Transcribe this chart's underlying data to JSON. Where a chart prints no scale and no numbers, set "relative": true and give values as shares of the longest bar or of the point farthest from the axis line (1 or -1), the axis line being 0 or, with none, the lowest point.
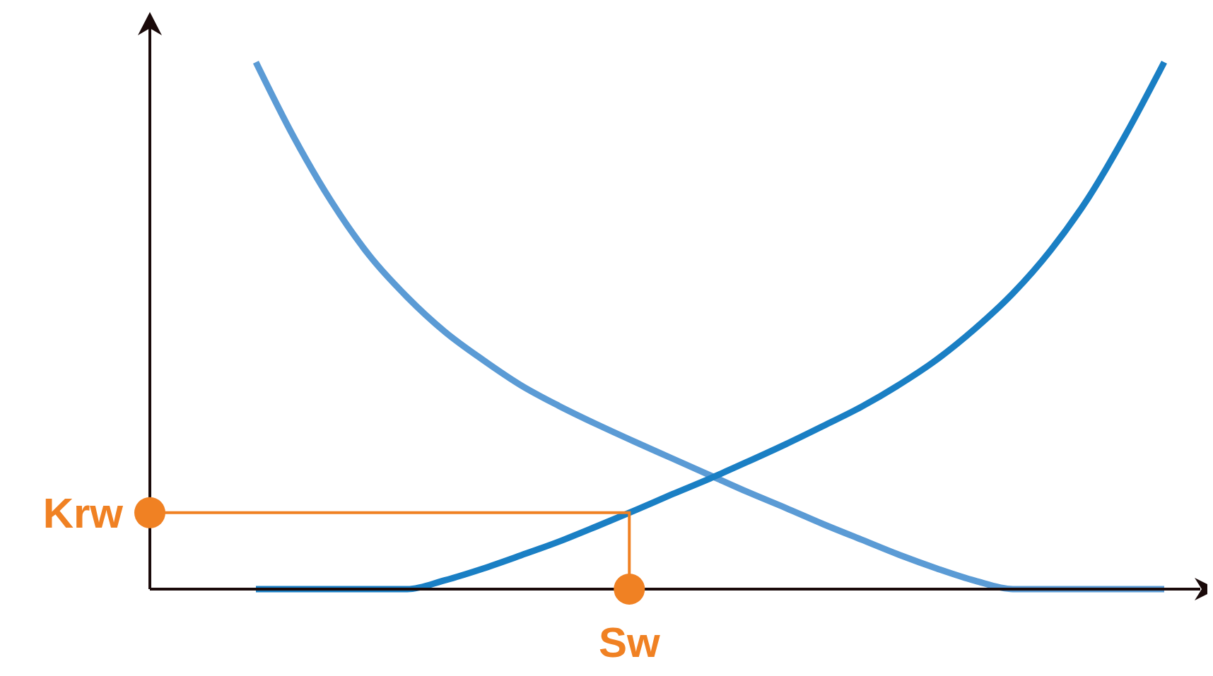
{
  "chart_data": {
    "type": "line",
    "relative": true,
    "line_style": "solid",
    "categories": [
      null,
      null,
      null,
      null,
      null,
      null,
      null,
      null,
      null,
      null,
      null,
      null,
      null,
      null,
      null,
      null,
      null,
      null,
      null,
      null,
      null,
      null,
      null,
      null,
      null
    ],
    "series": [
      {
        "color": "#5b9bd5",
        "values": [
          1.0,
          0.858,
          0.735,
          0.633,
          0.554,
          0.488,
          0.435,
          0.387,
          0.348,
          0.313,
          0.28,
          0.248,
          0.216,
          0.184,
          0.154,
          0.123,
          0.094,
          0.065,
          0.039,
          0.016,
          0,
          0,
          0,
          0,
          0
        ]
      },
      {
        "color": "#1a7fc4",
        "values": [
          0,
          0,
          0,
          0,
          0,
          0.017,
          0.039,
          0.064,
          0.09,
          0.119,
          0.149,
          0.18,
          0.21,
          0.242,
          0.275,
          0.31,
          0.346,
          0.388,
          0.436,
          0.494,
          0.561,
          0.643,
          0.743,
          0.865,
          1.0
        ]
      }
    ],
    "ref_lines": [
      {
        "axis": "y",
        "value": 0.145,
        "label": "Krw",
        "color": "#f08123"
      }
    ],
    "annotations": [
      "Sw"
    ]
  }
}
